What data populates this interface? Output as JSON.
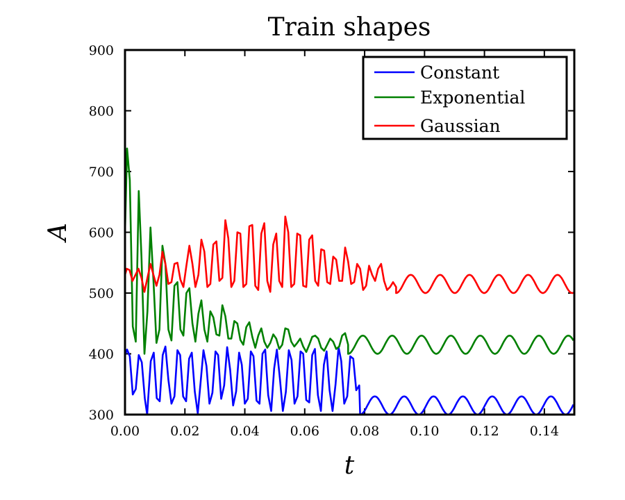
{
  "chart_data": {
    "type": "line",
    "title": "Train shapes",
    "xlabel": "t",
    "ylabel": "A",
    "xlim": [
      0.0,
      0.15
    ],
    "ylim": [
      300,
      900
    ],
    "xticks": [
      0.0,
      0.02,
      0.04,
      0.06,
      0.08,
      0.1,
      0.12,
      0.14
    ],
    "xtick_labels": [
      "0.00",
      "0.02",
      "0.04",
      "0.06",
      "0.08",
      "0.10",
      "0.12",
      "0.14"
    ],
    "yticks": [
      300,
      400,
      500,
      600,
      700,
      800,
      900
    ],
    "ytick_labels": [
      "300",
      "400",
      "500",
      "600",
      "700",
      "800",
      "900"
    ],
    "grid": false,
    "legend_position": "top-right",
    "series": [
      {
        "name": "Constant",
        "color": "#0000ff",
        "pulse_period": 0.0045,
        "train_end": 0.0785,
        "pre_points": [
          [
            0.0,
            398
          ],
          [
            0.0007,
            407
          ],
          [
            0.0016,
            396
          ],
          [
            0.0026,
            333
          ],
          [
            0.0036,
            342
          ],
          [
            0.0046,
            398
          ],
          [
            0.0056,
            386
          ],
          [
            0.0066,
            327
          ],
          [
            0.0074,
            300
          ],
          [
            0.0078,
            330
          ],
          [
            0.0086,
            388
          ],
          [
            0.0096,
            402
          ],
          [
            0.0106,
            327
          ],
          [
            0.0116,
            322
          ],
          [
            0.0126,
            398
          ],
          [
            0.0135,
            412
          ],
          [
            0.0145,
            357
          ],
          [
            0.0155,
            318
          ],
          [
            0.0165,
            330
          ],
          [
            0.0175,
            406
          ],
          [
            0.0184,
            398
          ],
          [
            0.0194,
            330
          ],
          [
            0.0204,
            322
          ],
          [
            0.0214,
            392
          ],
          [
            0.0223,
            402
          ],
          [
            0.0233,
            338
          ],
          [
            0.0243,
            302
          ],
          [
            0.0253,
            356
          ],
          [
            0.0262,
            406
          ],
          [
            0.0272,
            380
          ],
          [
            0.0282,
            318
          ],
          [
            0.0292,
            336
          ],
          [
            0.0302,
            404
          ],
          [
            0.0311,
            398
          ],
          [
            0.0321,
            326
          ],
          [
            0.0331,
            348
          ],
          [
            0.0341,
            411
          ],
          [
            0.0351,
            374
          ],
          [
            0.0361,
            315
          ],
          [
            0.0371,
            338
          ],
          [
            0.0381,
            402
          ],
          [
            0.039,
            382
          ],
          [
            0.04,
            318
          ],
          [
            0.041,
            326
          ],
          [
            0.042,
            404
          ],
          [
            0.0429,
            396
          ],
          [
            0.0439,
            323
          ],
          [
            0.0449,
            318
          ],
          [
            0.0459,
            400
          ],
          [
            0.0468,
            407
          ],
          [
            0.0478,
            332
          ],
          [
            0.0488,
            306
          ],
          [
            0.0498,
            376
          ],
          [
            0.0507,
            407
          ],
          [
            0.0517,
            360
          ],
          [
            0.0527,
            306
          ],
          [
            0.0537,
            337
          ],
          [
            0.0547,
            406
          ],
          [
            0.0556,
            390
          ],
          [
            0.0566,
            318
          ],
          [
            0.0576,
            330
          ],
          [
            0.0586,
            404
          ],
          [
            0.0595,
            400
          ],
          [
            0.0605,
            324
          ],
          [
            0.0615,
            320
          ],
          [
            0.0625,
            398
          ],
          [
            0.0634,
            408
          ],
          [
            0.0644,
            332
          ],
          [
            0.0654,
            306
          ],
          [
            0.0664,
            382
          ],
          [
            0.0673,
            404
          ],
          [
            0.0683,
            340
          ],
          [
            0.0693,
            306
          ],
          [
            0.0703,
            350
          ],
          [
            0.0713,
            411
          ],
          [
            0.0722,
            388
          ],
          [
            0.0732,
            318
          ],
          [
            0.0742,
            330
          ],
          [
            0.0752,
            396
          ],
          [
            0.0762,
            392
          ],
          [
            0.0772,
            340
          ],
          [
            0.0782,
            348
          ],
          [
            0.0785,
            300
          ]
        ],
        "post_oscillation": {
          "center": 315,
          "amplitude": 15,
          "period": 0.0098,
          "phase": 0.0785
        }
      },
      {
        "name": "Exponential",
        "color": "#008000",
        "pulse_period": 0.0045,
        "train_end": 0.0745,
        "pre_points": [
          [
            0.0,
            600
          ],
          [
            0.0007,
            738
          ],
          [
            0.0016,
            686
          ],
          [
            0.0026,
            445
          ],
          [
            0.0036,
            420
          ],
          [
            0.0046,
            668
          ],
          [
            0.0055,
            560
          ],
          [
            0.0065,
            400
          ],
          [
            0.0075,
            470
          ],
          [
            0.0085,
            608
          ],
          [
            0.0095,
            520
          ],
          [
            0.0105,
            418
          ],
          [
            0.0115,
            440
          ],
          [
            0.0125,
            578
          ],
          [
            0.0135,
            548
          ],
          [
            0.0145,
            440
          ],
          [
            0.0155,
            422
          ],
          [
            0.0165,
            512
          ],
          [
            0.0175,
            518
          ],
          [
            0.0185,
            440
          ],
          [
            0.0195,
            430
          ],
          [
            0.0205,
            500
          ],
          [
            0.0215,
            508
          ],
          [
            0.0225,
            450
          ],
          [
            0.0235,
            420
          ],
          [
            0.0245,
            466
          ],
          [
            0.0255,
            488
          ],
          [
            0.0265,
            440
          ],
          [
            0.0275,
            420
          ],
          [
            0.0285,
            470
          ],
          [
            0.0295,
            460
          ],
          [
            0.0305,
            432
          ],
          [
            0.0315,
            430
          ],
          [
            0.0325,
            480
          ],
          [
            0.0335,
            462
          ],
          [
            0.0345,
            425
          ],
          [
            0.0355,
            425
          ],
          [
            0.0365,
            454
          ],
          [
            0.0375,
            450
          ],
          [
            0.0385,
            423
          ],
          [
            0.0395,
            415
          ],
          [
            0.0405,
            444
          ],
          [
            0.0415,
            452
          ],
          [
            0.0425,
            428
          ],
          [
            0.0435,
            410
          ],
          [
            0.0445,
            430
          ],
          [
            0.0455,
            442
          ],
          [
            0.0465,
            420
          ],
          [
            0.0475,
            410
          ],
          [
            0.0485,
            418
          ],
          [
            0.0495,
            432
          ],
          [
            0.0505,
            425
          ],
          [
            0.0515,
            408
          ],
          [
            0.0525,
            415
          ],
          [
            0.0535,
            442
          ],
          [
            0.0545,
            440
          ],
          [
            0.0555,
            420
          ],
          [
            0.0565,
            412
          ],
          [
            0.0575,
            418
          ],
          [
            0.0585,
            425
          ],
          [
            0.0595,
            412
          ],
          [
            0.0605,
            403
          ],
          [
            0.0615,
            415
          ],
          [
            0.0625,
            428
          ],
          [
            0.0635,
            430
          ],
          [
            0.0645,
            425
          ],
          [
            0.0655,
            410
          ],
          [
            0.0665,
            405
          ],
          [
            0.0675,
            415
          ],
          [
            0.0685,
            425
          ],
          [
            0.0695,
            420
          ],
          [
            0.0705,
            408
          ],
          [
            0.0715,
            412
          ],
          [
            0.0725,
            430
          ],
          [
            0.0735,
            434
          ],
          [
            0.0745,
            415
          ]
        ],
        "post_oscillation": {
          "center": 415,
          "amplitude": 15,
          "period": 0.0098,
          "phase": 0.0745
        }
      },
      {
        "name": "Gaussian",
        "color": "#ff0000",
        "pulse_period": 0.0045,
        "train_end": 0.0905,
        "pre_points": [
          [
            0.0,
            530
          ],
          [
            0.0006,
            540
          ],
          [
            0.0015,
            538
          ],
          [
            0.0025,
            520
          ],
          [
            0.0035,
            530
          ],
          [
            0.0045,
            540
          ],
          [
            0.0055,
            525
          ],
          [
            0.0065,
            502
          ],
          [
            0.0075,
            525
          ],
          [
            0.0085,
            548
          ],
          [
            0.0095,
            530
          ],
          [
            0.0105,
            512
          ],
          [
            0.0115,
            530
          ],
          [
            0.0125,
            568
          ],
          [
            0.0135,
            548
          ],
          [
            0.0145,
            515
          ],
          [
            0.0155,
            518
          ],
          [
            0.0165,
            548
          ],
          [
            0.0175,
            550
          ],
          [
            0.0185,
            522
          ],
          [
            0.0195,
            510
          ],
          [
            0.0205,
            545
          ],
          [
            0.0215,
            578
          ],
          [
            0.0225,
            548
          ],
          [
            0.0235,
            510
          ],
          [
            0.0245,
            530
          ],
          [
            0.0255,
            588
          ],
          [
            0.0265,
            568
          ],
          [
            0.0275,
            510
          ],
          [
            0.0285,
            515
          ],
          [
            0.0295,
            580
          ],
          [
            0.0305,
            585
          ],
          [
            0.0315,
            520
          ],
          [
            0.0325,
            525
          ],
          [
            0.0335,
            620
          ],
          [
            0.0345,
            590
          ],
          [
            0.0355,
            510
          ],
          [
            0.0365,
            520
          ],
          [
            0.0375,
            600
          ],
          [
            0.0385,
            598
          ],
          [
            0.0395,
            510
          ],
          [
            0.0405,
            515
          ],
          [
            0.0415,
            610
          ],
          [
            0.0425,
            612
          ],
          [
            0.0435,
            512
          ],
          [
            0.0445,
            505
          ],
          [
            0.0455,
            598
          ],
          [
            0.0465,
            615
          ],
          [
            0.0475,
            520
          ],
          [
            0.0485,
            502
          ],
          [
            0.0495,
            580
          ],
          [
            0.0505,
            598
          ],
          [
            0.0515,
            520
          ],
          [
            0.0525,
            510
          ],
          [
            0.0535,
            626
          ],
          [
            0.0545,
            600
          ],
          [
            0.0555,
            510
          ],
          [
            0.0565,
            515
          ],
          [
            0.0575,
            598
          ],
          [
            0.0585,
            595
          ],
          [
            0.0595,
            512
          ],
          [
            0.0605,
            510
          ],
          [
            0.0615,
            588
          ],
          [
            0.0625,
            595
          ],
          [
            0.0635,
            520
          ],
          [
            0.0645,
            512
          ],
          [
            0.0655,
            572
          ],
          [
            0.0665,
            570
          ],
          [
            0.0675,
            518
          ],
          [
            0.0685,
            515
          ],
          [
            0.0695,
            560
          ],
          [
            0.0705,
            555
          ],
          [
            0.0715,
            520
          ],
          [
            0.0725,
            520
          ],
          [
            0.0735,
            575
          ],
          [
            0.0745,
            552
          ],
          [
            0.0755,
            515
          ],
          [
            0.0765,
            518
          ],
          [
            0.0775,
            548
          ],
          [
            0.0785,
            540
          ],
          [
            0.0795,
            505
          ],
          [
            0.0805,
            512
          ],
          [
            0.0815,
            545
          ],
          [
            0.0825,
            530
          ],
          [
            0.0835,
            520
          ],
          [
            0.0845,
            540
          ],
          [
            0.0855,
            548
          ],
          [
            0.0865,
            520
          ],
          [
            0.0875,
            505
          ],
          [
            0.0885,
            510
          ],
          [
            0.0895,
            518
          ],
          [
            0.0905,
            510
          ]
        ],
        "post_oscillation": {
          "center": 515,
          "amplitude": 15,
          "period": 0.0098,
          "phase": 0.0905
        }
      }
    ]
  }
}
